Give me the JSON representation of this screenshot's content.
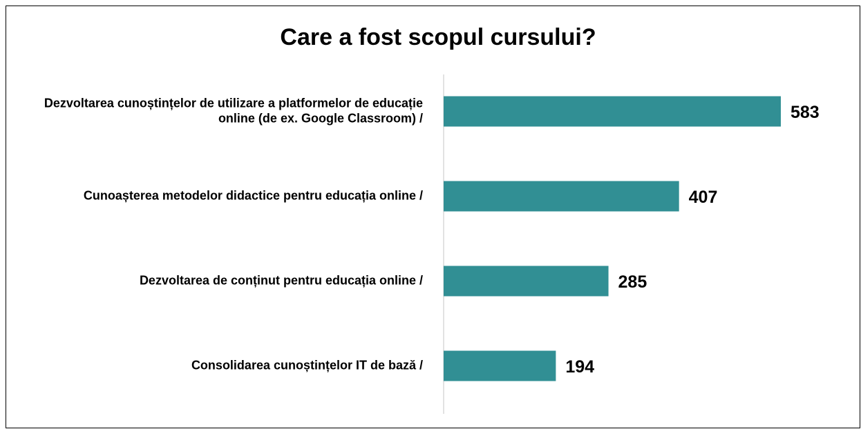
{
  "chart_data": {
    "type": "bar",
    "orientation": "horizontal",
    "title": "Care a fost scopul cursului?",
    "categories": [
      "Dezvoltarea cunoștințelor de utilizare a platformelor de educație online (de ex. Google Classroom) /",
      "Cunoașterea metodelor didactice pentru educația online /",
      "Dezvoltarea de conținut pentru educația online /",
      "Consolidarea cunoștințelor IT de bază /"
    ],
    "values": [
      583,
      407,
      285,
      194
    ],
    "color": "#318f94"
  }
}
